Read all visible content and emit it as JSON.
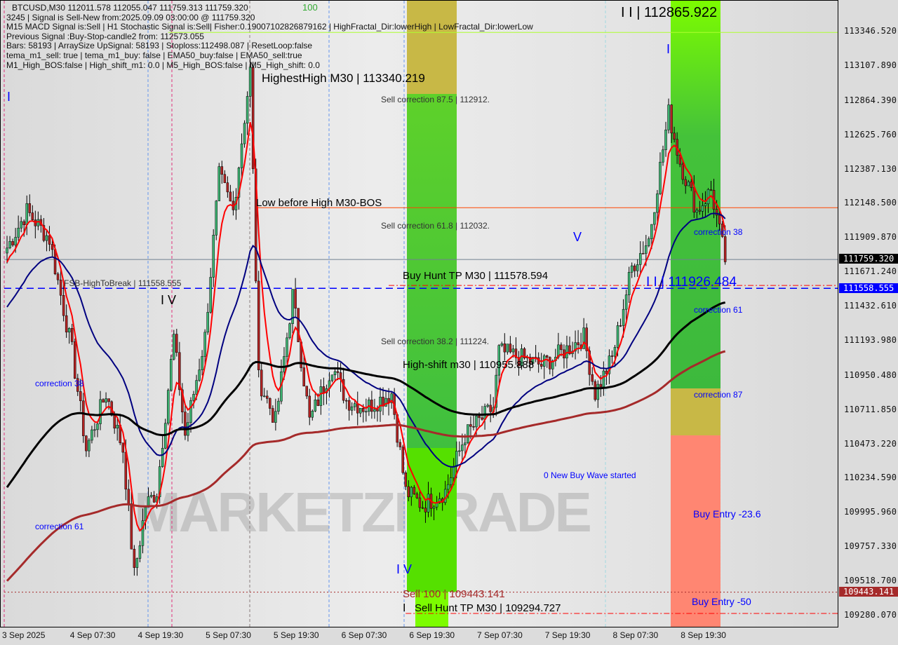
{
  "chart_data": {
    "type": "candlestick",
    "symbol_line": "BTCUSD,M30  112011.578 112055.047 111759.313 111759.320",
    "info_lines": [
      "3245 | Signal is Sell-New from:2025.09.09 03:00:00 @ 111759.320",
      "M15 MACD Signal is:Sell | H1 Stochastic Signal is:Sell| Fisher:0.19007102826879162 | HighFractal_Dir:lowerHigh | LowFractal_Dir:lowerLow",
      "Previous Signal :Buy-Stop-candle2 from: 112573.055",
      "Bars: 58193 | ArraySize UpSignal: 58193 | Stoploss:112498.087 | ResetLoop:false",
      "tema_m1_sell: true | tema_m1_buy: false | EMA50_buy:false | EMA50_sell:true",
      "M1_High_BOS:false | High_shift_m1: 0.0 | M5_High_BOS:false | M5_High_shift: 0.0"
    ],
    "ylim": [
      109280.07,
      113346.52
    ],
    "y_ticks": [
      "113346.520",
      "113107.890",
      "112864.390",
      "112625.760",
      "112387.130",
      "112148.500",
      "111909.870",
      "111671.240",
      "111432.610",
      "111193.980",
      "110950.480",
      "110711.850",
      "110473.220",
      "110234.590",
      "109995.960",
      "109757.330",
      "109518.700",
      "109280.070"
    ],
    "x_ticks": [
      {
        "label": "3 Sep 2025",
        "time": "2025-09-03T19:30"
      },
      {
        "label": "4 Sep 07:30",
        "time": "2025-09-04T07:30"
      },
      {
        "label": "4 Sep 19:30",
        "time": "2025-09-04T19:30"
      },
      {
        "label": "5 Sep 07:30",
        "time": "2025-09-05T07:30"
      },
      {
        "label": "5 Sep 19:30",
        "time": "2025-09-05T19:30"
      },
      {
        "label": "6 Sep 07:30",
        "time": "2025-09-06T07:30"
      },
      {
        "label": "6 Sep 19:30",
        "time": "2025-09-06T19:30"
      },
      {
        "label": "7 Sep 07:30",
        "time": "2025-09-07T07:30"
      },
      {
        "label": "7 Sep 19:30",
        "time": "2025-09-07T19:30"
      },
      {
        "label": "8 Sep 07:30",
        "time": "2025-09-08T07:30"
      },
      {
        "label": "8 Sep 19:30",
        "time": "2025-09-08T19:30"
      }
    ],
    "current_price": {
      "label": "111759.320",
      "value": 111759.32,
      "color": "#000000"
    },
    "fsb_price": {
      "label": "111558.555",
      "value": 111558.555,
      "color": "#0000ff"
    },
    "sell100_price": {
      "label": "109443.141",
      "value": 109443.141,
      "color": "#a52a2a"
    },
    "price_path": [
      [
        "2025-09-03T19:30",
        111804
      ],
      [
        "2025-09-03T23:30",
        112096
      ],
      [
        "2025-09-04T03:30",
        111902
      ],
      [
        "2025-09-04T07:30",
        111121
      ],
      [
        "2025-09-04T10:00",
        110438
      ],
      [
        "2025-09-04T13:30",
        110828
      ],
      [
        "2025-09-04T16:30",
        110438
      ],
      [
        "2025-09-04T18:30",
        109560
      ],
      [
        "2025-09-04T20:30",
        110048
      ],
      [
        "2025-09-04T22:30",
        110145
      ],
      [
        "2025-09-05T01:30",
        111219
      ],
      [
        "2025-09-05T03:30",
        110535
      ],
      [
        "2025-09-05T07:00",
        111219
      ],
      [
        "2025-09-05T09:30",
        112341
      ],
      [
        "2025-09-05T12:00",
        112097
      ],
      [
        "2025-09-05T15:00",
        113073
      ],
      [
        "2025-09-05T16:30",
        110926
      ],
      [
        "2025-09-05T19:30",
        110633
      ],
      [
        "2025-09-05T22:30",
        111511
      ],
      [
        "2025-09-06T01:30",
        110633
      ],
      [
        "2025-09-06T05:30",
        111023
      ],
      [
        "2025-09-06T08:00",
        110779
      ],
      [
        "2025-09-06T11:30",
        110730
      ],
      [
        "2025-09-06T16:00",
        110828
      ],
      [
        "2025-09-06T18:30",
        110145
      ],
      [
        "2025-09-06T21:30",
        110048
      ],
      [
        "2025-09-07T01:30",
        110145
      ],
      [
        "2025-09-07T05:00",
        110535
      ],
      [
        "2025-09-07T10:00",
        110730
      ],
      [
        "2025-09-07T11:00",
        111121
      ],
      [
        "2025-09-07T15:00",
        111072
      ],
      [
        "2025-09-07T18:30",
        111023
      ],
      [
        "2025-09-07T22:30",
        111121
      ],
      [
        "2025-09-08T02:00",
        111219
      ],
      [
        "2025-09-08T04:00",
        110828
      ],
      [
        "2025-09-08T07:00",
        111072
      ],
      [
        "2025-09-08T10:30",
        111706
      ],
      [
        "2025-09-08T13:30",
        111902
      ],
      [
        "2025-09-08T17:00",
        112780
      ],
      [
        "2025-09-08T19:00",
        112439
      ],
      [
        "2025-09-08T22:00",
        112097
      ],
      [
        "2025-09-09T00:30",
        112243
      ],
      [
        "2025-09-09T03:00",
        111759.32
      ]
    ],
    "candle_up_color": "#3cb371",
    "candle_down_color": "#b22222",
    "moving_averages": [
      {
        "color": "#ff0000",
        "period": 6,
        "start": 111700
      },
      {
        "color": "#000080",
        "period": 30,
        "start": 111400
      },
      {
        "color": "#000000",
        "period": 120,
        "start": 110145
      },
      {
        "color": "#a52a2a",
        "period": 220,
        "start": 109500
      }
    ],
    "levels": [
      {
        "name": "low-before-high",
        "value": 112120,
        "color": "#ff4500",
        "style": "solid",
        "from": "2025-09-05T16:00"
      },
      {
        "name": "current-price",
        "value": 111759.32,
        "color": "#708090",
        "style": "solid",
        "from": "2025-09-03T19:30"
      },
      {
        "name": "buy-hunt-tp",
        "value": 111578.594,
        "color": "#ff0000",
        "style": "dashdot",
        "from": "2025-09-06T15:30"
      },
      {
        "name": "fsb-high-to-break",
        "value": 111558.555,
        "color": "#0000ff",
        "style": "dash",
        "from": "2025-09-03T19:30"
      },
      {
        "name": "highest-high",
        "value": 113340.219,
        "color": "#adff2f",
        "style": "solid",
        "from": "2025-09-05T00:30"
      },
      {
        "name": "sell-100",
        "value": 109443.141,
        "color": "#a52a2a",
        "style": "dot",
        "from": "2025-09-03T19:30"
      },
      {
        "name": "sell-hunt-tp",
        "value": 109294.727,
        "color": "#ff0000",
        "style": "dashdot",
        "from": "2025-09-06T18:30"
      }
    ],
    "labels": {
      "highest_high": "HighestHigh   M30 | 113340.219",
      "wave_iii": "I I | 112865.922",
      "wave_i_right": "I",
      "wave_i_left": "I",
      "wave_iv_left": "I V",
      "wave_v": "V",
      "wave_iv_bottom": "I V",
      "wave_ii": "I I | 111926.484",
      "wave_i_bottom": "I",
      "low_before_high": "Low before High   M30-BOS",
      "sell_corr_875": "Sell correction 87.5 | 112912.",
      "sell_corr_618": "Sell correction 61.8 | 112032.",
      "sell_corr_382": "Sell correction 38.2 | 111224.",
      "buy_hunt_tp": "Buy Hunt TP M30 | 111578.594",
      "fsb": "FSB-HighToBreak | 111558.555",
      "high_shift": "High-shift m30 | 110955.888",
      "correction_38_left": "correction 38",
      "correction_61_left": "correction 61",
      "correction_38_right": "correction 38",
      "correction_61_right": "correction 61",
      "correction_87_right": "correction 87",
      "new_buy_wave": "0 New Buy Wave started",
      "buy_entry_236": "Buy Entry -23.6",
      "buy_entry_50": "Buy Entry -50",
      "sell_100": "Sell 100 | 109443.141",
      "sell_hunt_tp": "Sell Hunt TP M30 | 109294.727",
      "label_100": "100"
    },
    "watermark": "MARKETZITRADE"
  }
}
